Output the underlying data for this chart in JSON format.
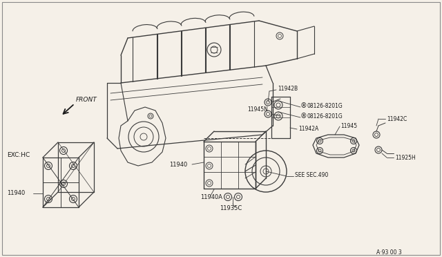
{
  "bg_color": "#f5f0e8",
  "line_color": "#3a3a3a",
  "text_color": "#1a1a1a",
  "fig_width": 6.4,
  "fig_height": 3.72,
  "dpi": 100,
  "stamp": "A·93 00 3",
  "labels": {
    "front": "FRONT",
    "exc_hc": "EXC:HC",
    "11942B": "11942B",
    "11945N": "11945N",
    "08126_1": "08126-8201G",
    "08126_2": "08126-8201G",
    "11945": "11945",
    "11942C": "11942C",
    "11925H": "11925H",
    "11942A": "11942A",
    "see_sec": "SEE SEC.490",
    "11940_left": "11940",
    "11940_main": "11940",
    "11940A": "11940A",
    "11935C": "11935C"
  }
}
